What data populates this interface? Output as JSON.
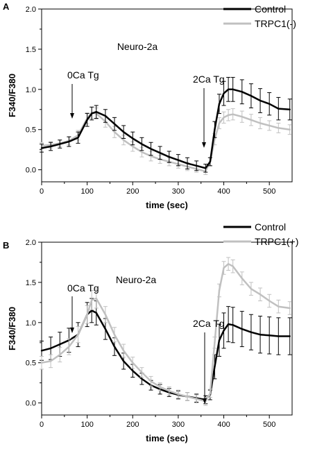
{
  "chart_data": [
    {
      "type": "line",
      "panel": "A",
      "annotation_label": "Neuro-2a",
      "xlabel": "time (sec)",
      "ylabel": "F340/F380",
      "xlim": [
        0,
        550
      ],
      "ylim": [
        -0.15,
        2.0
      ],
      "xticks": [
        "0",
        "100",
        "200",
        "300",
        "400",
        "500"
      ],
      "yticks": [
        "0.0",
        "0.5",
        "1.0",
        "1.5",
        "2.0"
      ],
      "legend_placement": "top-right",
      "error_bars": true,
      "annotations": [
        {
          "text": "0Ca Tg",
          "x": 68,
          "y": 0.35
        },
        {
          "text": "2Ca Tg",
          "x": 365,
          "y": -0.05
        }
      ],
      "series": [
        {
          "name": "Control",
          "color": "#000000",
          "x": [
            0,
            20,
            40,
            60,
            80,
            100,
            110,
            120,
            140,
            160,
            180,
            200,
            220,
            240,
            260,
            280,
            300,
            320,
            340,
            360,
            370,
            380,
            390,
            400,
            410,
            420,
            440,
            460,
            480,
            500,
            520,
            545
          ],
          "y": [
            0.27,
            0.29,
            0.32,
            0.35,
            0.4,
            0.62,
            0.7,
            0.72,
            0.67,
            0.57,
            0.47,
            0.39,
            0.32,
            0.26,
            0.21,
            0.16,
            0.12,
            0.08,
            0.05,
            0.02,
            0.1,
            0.5,
            0.82,
            0.95,
            1.0,
            1.0,
            0.97,
            0.92,
            0.86,
            0.82,
            0.76,
            0.75
          ],
          "err": [
            0.05,
            0.05,
            0.05,
            0.06,
            0.07,
            0.08,
            0.08,
            0.08,
            0.08,
            0.08,
            0.08,
            0.08,
            0.08,
            0.08,
            0.08,
            0.07,
            0.07,
            0.07,
            0.06,
            0.05,
            0.05,
            0.1,
            0.12,
            0.15,
            0.15,
            0.15,
            0.15,
            0.15,
            0.15,
            0.14,
            0.14,
            0.13
          ]
        },
        {
          "name": "TRPC1(-)",
          "color": "#c0c0c0",
          "x": [
            0,
            20,
            40,
            60,
            80,
            100,
            110,
            120,
            140,
            160,
            180,
            200,
            220,
            240,
            260,
            280,
            300,
            320,
            340,
            360,
            370,
            380,
            390,
            400,
            410,
            420,
            440,
            460,
            480,
            500,
            520,
            545
          ],
          "y": [
            0.3,
            0.31,
            0.33,
            0.36,
            0.43,
            0.64,
            0.71,
            0.7,
            0.6,
            0.47,
            0.37,
            0.29,
            0.22,
            0.17,
            0.13,
            0.1,
            0.07,
            0.04,
            0.01,
            -0.02,
            0.1,
            0.38,
            0.58,
            0.65,
            0.68,
            0.69,
            0.66,
            0.62,
            0.58,
            0.55,
            0.52,
            0.5
          ],
          "err": [
            0.04,
            0.04,
            0.04,
            0.05,
            0.06,
            0.07,
            0.07,
            0.07,
            0.07,
            0.07,
            0.06,
            0.06,
            0.06,
            0.06,
            0.05,
            0.05,
            0.05,
            0.05,
            0.04,
            0.04,
            0.05,
            0.07,
            0.07,
            0.07,
            0.07,
            0.07,
            0.07,
            0.07,
            0.07,
            0.06,
            0.06,
            0.06
          ]
        }
      ]
    },
    {
      "type": "line",
      "panel": "B",
      "annotation_label": "Neuro-2a",
      "xlabel": "time (sec)",
      "ylabel": "F340/F380",
      "xlim": [
        0,
        550
      ],
      "ylim": [
        -0.15,
        2.0
      ],
      "xticks": [
        "0",
        "100",
        "200",
        "300",
        "400",
        "500"
      ],
      "yticks": [
        "0.0",
        "0.5",
        "1.0",
        "1.5",
        "2.0"
      ],
      "legend_placement": "top-right",
      "error_bars": true,
      "annotations": [
        {
          "text": "0Ca Tg",
          "x": 70,
          "y": 0.78
        },
        {
          "text": "2Ca Tg",
          "x": 365,
          "y": 0.0
        }
      ],
      "series": [
        {
          "name": "Control",
          "color": "#000000",
          "x": [
            0,
            20,
            40,
            60,
            80,
            100,
            110,
            120,
            140,
            160,
            180,
            200,
            220,
            240,
            260,
            280,
            300,
            320,
            340,
            360,
            370,
            380,
            390,
            400,
            410,
            420,
            440,
            460,
            480,
            500,
            520,
            545
          ],
          "y": [
            0.65,
            0.68,
            0.73,
            0.78,
            0.85,
            1.1,
            1.15,
            1.12,
            0.92,
            0.7,
            0.52,
            0.4,
            0.3,
            0.22,
            0.17,
            0.13,
            0.1,
            0.08,
            0.06,
            0.04,
            0.1,
            0.45,
            0.78,
            0.9,
            0.98,
            0.97,
            0.92,
            0.88,
            0.85,
            0.84,
            0.83,
            0.83
          ],
          "err": [
            0.12,
            0.14,
            0.15,
            0.15,
            0.15,
            0.15,
            0.15,
            0.15,
            0.13,
            0.11,
            0.1,
            0.08,
            0.07,
            0.06,
            0.06,
            0.05,
            0.05,
            0.05,
            0.05,
            0.05,
            0.06,
            0.15,
            0.2,
            0.22,
            0.22,
            0.22,
            0.22,
            0.22,
            0.23,
            0.23,
            0.23,
            0.23
          ]
        },
        {
          "name": "TRPC1(+)",
          "color": "#c0c0c0",
          "x": [
            0,
            20,
            40,
            60,
            80,
            100,
            110,
            120,
            140,
            160,
            180,
            200,
            220,
            240,
            260,
            280,
            300,
            320,
            340,
            360,
            370,
            380,
            390,
            400,
            410,
            420,
            440,
            460,
            480,
            500,
            520,
            545
          ],
          "y": [
            0.5,
            0.52,
            0.6,
            0.7,
            0.85,
            1.1,
            1.28,
            1.3,
            1.1,
            0.85,
            0.65,
            0.5,
            0.38,
            0.27,
            0.2,
            0.15,
            0.11,
            0.08,
            0.05,
            0.02,
            0.12,
            0.75,
            1.4,
            1.68,
            1.73,
            1.7,
            1.55,
            1.42,
            1.35,
            1.27,
            1.2,
            1.18
          ],
          "err": [
            0.08,
            0.08,
            0.09,
            0.1,
            0.1,
            0.11,
            0.12,
            0.12,
            0.1,
            0.09,
            0.08,
            0.07,
            0.06,
            0.06,
            0.05,
            0.05,
            0.05,
            0.05,
            0.05,
            0.05,
            0.05,
            0.07,
            0.08,
            0.08,
            0.08,
            0.08,
            0.08,
            0.08,
            0.08,
            0.08,
            0.08,
            0.08
          ]
        }
      ]
    }
  ]
}
